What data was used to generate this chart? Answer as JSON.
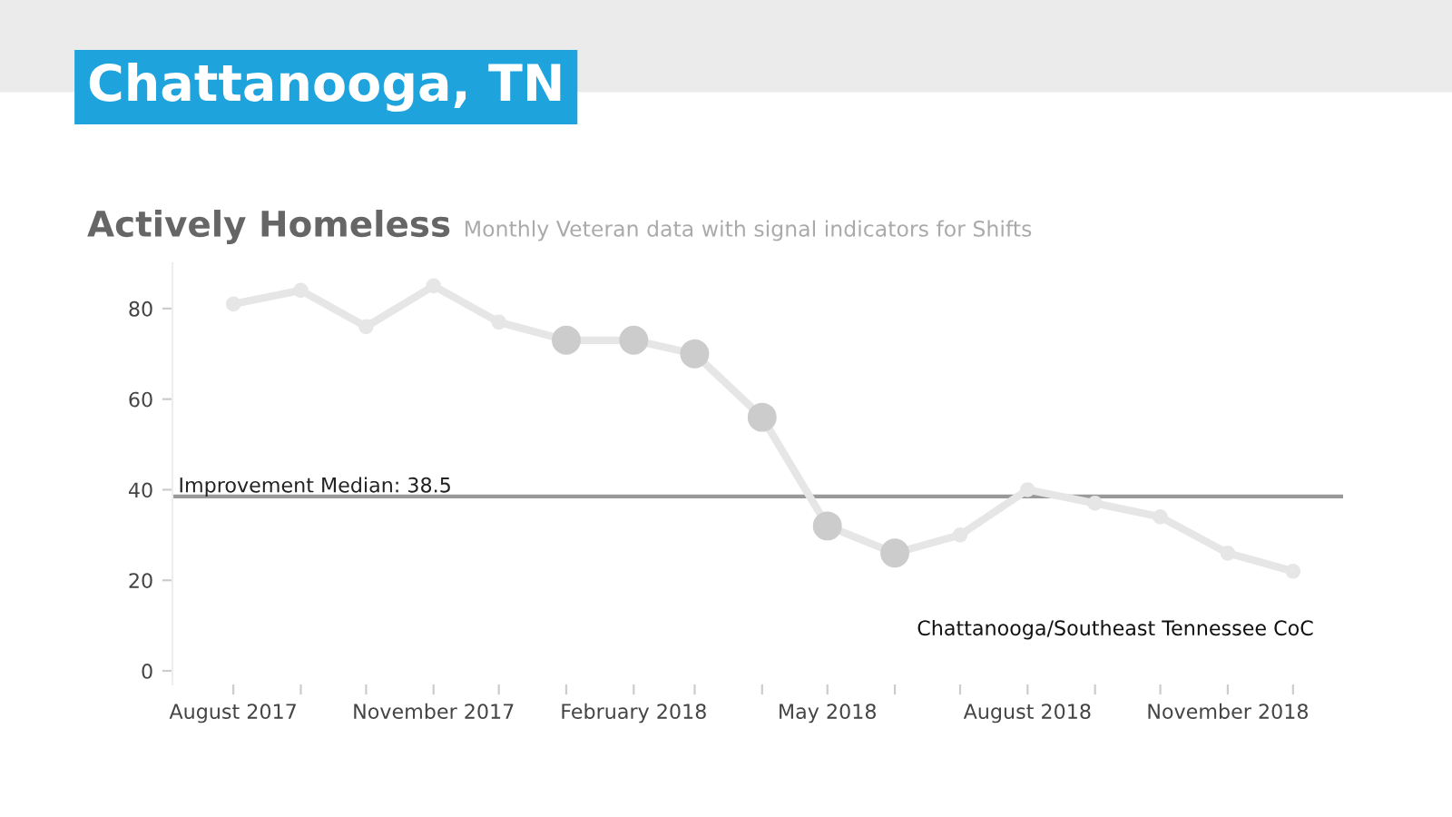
{
  "chart_data": {
    "type": "line",
    "title": "Chattanooga, TN",
    "subtitle": "Actively Homeless",
    "annotations": [
      "Monthly Veteran data with signal indicators for Shifts",
      "Chattanooga/Southeast Tennessee CoC"
    ],
    "x": [
      "2017-08",
      "2017-09",
      "2017-10",
      "2017-11",
      "2017-12",
      "2018-01",
      "2018-02",
      "2018-03",
      "2018-04",
      "2018-05",
      "2018-06",
      "2018-07",
      "2018-08",
      "2018-09",
      "2018-10",
      "2018-11",
      "2018-12"
    ],
    "series": [
      {
        "color": "#e6e6e6",
        "marker": "circle",
        "values": [
          81,
          84,
          76,
          85,
          77,
          73,
          73,
          70,
          56,
          32,
          26,
          30,
          40,
          37,
          34,
          26,
          22
        ]
      },
      {
        "type": "scatter",
        "color": "#cccccc",
        "marker": "circle",
        "x": [
          "2018-01",
          "2018-02",
          "2018-03",
          "2018-04",
          "2018-05",
          "2018-06"
        ],
        "values": [
          73,
          73,
          70,
          56,
          32,
          26
        ]
      }
    ],
    "xlim": [
      "2017-07-04",
      "2018-12-24"
    ],
    "xticks": [
      {
        "value": "2017-08",
        "label": "August 2017"
      },
      {
        "value": "2017-09",
        "label": null
      },
      {
        "value": "2017-10",
        "label": null
      },
      {
        "value": "2017-11",
        "label": "November 2017"
      },
      {
        "value": "2017-12",
        "label": null
      },
      {
        "value": "2018-01",
        "label": null
      },
      {
        "value": "2018-02",
        "label": "February 2018"
      },
      {
        "value": "2018-03",
        "label": null
      },
      {
        "value": "2018-04",
        "label": null
      },
      {
        "value": "2018-05",
        "label": "May 2018"
      },
      {
        "value": "2018-06",
        "label": null
      },
      {
        "value": "2018-07",
        "label": null
      },
      {
        "value": "2018-08",
        "label": "August 2018"
      },
      {
        "value": "2018-09",
        "label": null
      },
      {
        "value": "2018-10",
        "label": null
      },
      {
        "value": "2018-11",
        "label": "November 2018"
      },
      {
        "value": "2018-12",
        "label": null
      }
    ],
    "ylim": [
      -3,
      90
    ],
    "yticks": [
      0,
      20,
      40,
      60,
      80
    ],
    "ref_lines": [
      {
        "axis": "y",
        "value": 38.5,
        "label": "Improvement Median: 38.5",
        "color": "#999999"
      }
    ],
    "grid": false
  }
}
